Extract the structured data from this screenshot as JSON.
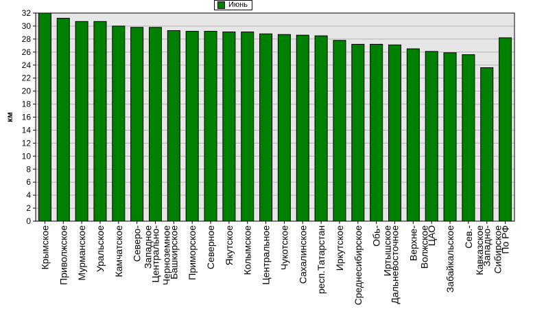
{
  "chart_data": {
    "type": "bar",
    "ylabel": "км",
    "ylim": [
      0,
      32
    ],
    "ytick_step": 2,
    "grid": true,
    "legend_position": "top-center",
    "series": [
      {
        "name": "Июнь",
        "color": "#008000"
      }
    ],
    "categories": [
      "Крымское",
      "Приволжское",
      "Мурманское",
      "Уральское",
      "Камчатское",
      "Северо-\nЗападное",
      "Центрально-\nЧерноземное",
      "Башкирское",
      "Приморское",
      "Северное",
      "Якутское",
      "Колымское",
      "Центральное",
      "Чукотское",
      "Сахалинское",
      "респ.Татарстан",
      "Иркутское",
      "Среднесибирское",
      "Обь-\nИртышское",
      "Дальневосточное",
      "Верхне-\nВолжское",
      "ЦАО",
      "Забайкальское",
      "Сев.-\nКавказское",
      "Западно-\nСибирское",
      "По РФ"
    ],
    "values": [
      32.0,
      31.2,
      30.7,
      30.7,
      30.0,
      29.8,
      29.8,
      29.3,
      29.2,
      29.2,
      29.1,
      29.1,
      28.8,
      28.7,
      28.6,
      28.5,
      27.8,
      27.2,
      27.2,
      27.1,
      26.5,
      26.1,
      25.9,
      25.6,
      23.6,
      28.2
    ]
  }
}
